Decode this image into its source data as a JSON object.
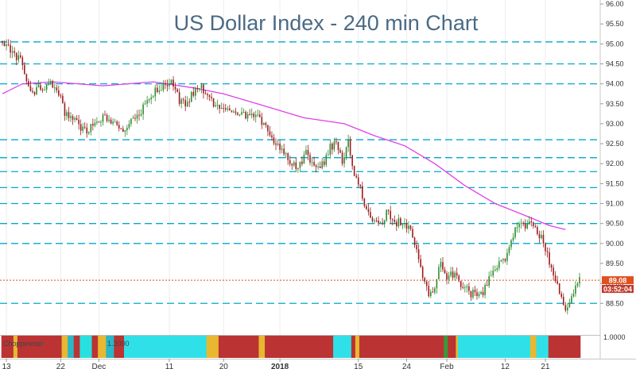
{
  "chart_data": {
    "type": "candlestick",
    "title": "US Dollar Index - 240 min Chart",
    "ylim": [
      87.75,
      96.1
    ],
    "y_ticks": [
      "96.00",
      "95.50",
      "95.00",
      "94.50",
      "94.00",
      "93.50",
      "93.00",
      "92.50",
      "92.00",
      "91.50",
      "91.00",
      "90.50",
      "90.00",
      "89.50",
      "89.00",
      "88.50"
    ],
    "x_ticks": [
      {
        "label": "13",
        "i": 2
      },
      {
        "label": "22",
        "i": 29
      },
      {
        "label": "Dec",
        "i": 48
      },
      {
        "label": "11",
        "i": 83
      },
      {
        "label": "20",
        "i": 110
      },
      {
        "label": "2018",
        "i": 138
      },
      {
        "label": "15",
        "i": 177
      },
      {
        "label": "24",
        "i": 201
      },
      {
        "label": "Feb",
        "i": 221
      },
      {
        "label": "12",
        "i": 250
      },
      {
        "label": "21",
        "i": 270
      }
    ],
    "horizontal_levels": [
      95.05,
      94.5,
      94.0,
      92.6,
      92.15,
      91.8,
      91.4,
      91.0,
      90.5,
      90.0,
      88.5
    ],
    "price_path": [
      [
        0,
        95.1
      ],
      [
        4,
        94.8
      ],
      [
        9,
        94.6
      ],
      [
        14,
        93.8
      ],
      [
        19,
        93.9
      ],
      [
        24,
        94.0
      ],
      [
        28,
        93.8
      ],
      [
        31,
        93.3
      ],
      [
        37,
        93.0
      ],
      [
        41,
        92.8
      ],
      [
        45,
        92.95
      ],
      [
        49,
        93.15
      ],
      [
        54,
        93.05
      ],
      [
        60,
        92.9
      ],
      [
        67,
        93.2
      ],
      [
        74,
        93.7
      ],
      [
        80,
        94.0
      ],
      [
        84,
        94.1
      ],
      [
        88,
        93.6
      ],
      [
        91,
        93.5
      ],
      [
        95,
        93.8
      ],
      [
        99,
        93.9
      ],
      [
        104,
        93.55
      ],
      [
        110,
        93.3
      ],
      [
        115,
        93.35
      ],
      [
        121,
        93.2
      ],
      [
        127,
        93.2
      ],
      [
        131,
        92.9
      ],
      [
        135,
        92.6
      ],
      [
        139,
        92.3
      ],
      [
        143,
        92.05
      ],
      [
        147,
        91.9
      ],
      [
        151,
        92.25
      ],
      [
        155,
        91.9
      ],
      [
        159,
        91.95
      ],
      [
        163,
        92.4
      ],
      [
        166,
        92.55
      ],
      [
        169,
        92.1
      ],
      [
        172,
        92.55
      ],
      [
        174,
        91.9
      ],
      [
        177,
        91.5
      ],
      [
        180,
        91.0
      ],
      [
        183,
        90.6
      ],
      [
        186,
        90.5
      ],
      [
        189,
        90.6
      ],
      [
        192,
        90.8
      ],
      [
        195,
        90.5
      ],
      [
        198,
        90.55
      ],
      [
        201,
        90.4
      ],
      [
        204,
        90.25
      ],
      [
        207,
        89.6
      ],
      [
        209,
        89.2
      ],
      [
        212,
        88.7
      ],
      [
        215,
        88.95
      ],
      [
        218,
        89.5
      ],
      [
        221,
        89.2
      ],
      [
        225,
        89.2
      ],
      [
        229,
        88.9
      ],
      [
        233,
        88.75
      ],
      [
        236,
        88.7
      ],
      [
        239,
        88.8
      ],
      [
        242,
        89.15
      ],
      [
        245,
        89.4
      ],
      [
        248,
        89.6
      ],
      [
        251,
        89.7
      ],
      [
        254,
        90.2
      ],
      [
        257,
        90.5
      ],
      [
        260,
        90.45
      ],
      [
        263,
        90.5
      ],
      [
        266,
        90.25
      ],
      [
        269,
        90.05
      ],
      [
        272,
        89.55
      ],
      [
        275,
        89.1
      ],
      [
        278,
        88.6
      ],
      [
        281,
        88.3
      ],
      [
        284,
        88.75
      ],
      [
        287,
        89.08
      ]
    ],
    "moving_average": {
      "color": "#e040e8",
      "points": [
        [
          0,
          93.75
        ],
        [
          10,
          94.0
        ],
        [
          25,
          94.05
        ],
        [
          50,
          93.95
        ],
        [
          75,
          94.05
        ],
        [
          95,
          93.9
        ],
        [
          110,
          93.75
        ],
        [
          130,
          93.45
        ],
        [
          150,
          93.15
        ],
        [
          170,
          93.0
        ],
        [
          185,
          92.7
        ],
        [
          200,
          92.45
        ],
        [
          215,
          92.0
        ],
        [
          230,
          91.45
        ],
        [
          245,
          91.0
        ],
        [
          260,
          90.7
        ],
        [
          272,
          90.45
        ],
        [
          280,
          90.35
        ]
      ]
    },
    "last_price": {
      "value": 89.08,
      "label": "89.08",
      "countdown": "03:52:04"
    },
    "colors": {
      "up": "#2e8b2e",
      "down": "#9b1c1c",
      "grid": "#00aacc",
      "last_price": "#e05020"
    }
  },
  "indicator": {
    "label": "Choppiness",
    "value_label": "1.2000",
    "axis_label": "1.0000",
    "segments": [
      {
        "from": 0,
        "to": 6,
        "color": "#bb3333"
      },
      {
        "from": 6,
        "to": 8,
        "color": "#e8b830"
      },
      {
        "from": 8,
        "to": 30,
        "color": "#bb3333"
      },
      {
        "from": 30,
        "to": 33,
        "color": "#e8b830"
      },
      {
        "from": 33,
        "to": 36,
        "color": "#28b8c8"
      },
      {
        "from": 36,
        "to": 39,
        "color": "#bb3333"
      },
      {
        "from": 39,
        "to": 45,
        "color": "#28e0e0"
      },
      {
        "from": 45,
        "to": 48,
        "color": "#bb3333"
      },
      {
        "from": 48,
        "to": 52,
        "color": "#e8b830"
      },
      {
        "from": 52,
        "to": 56,
        "color": "#28b8c8"
      },
      {
        "from": 56,
        "to": 61,
        "color": "#bb3333"
      },
      {
        "from": 61,
        "to": 102,
        "color": "#30e0e8"
      },
      {
        "from": 102,
        "to": 108,
        "color": "#e8b830"
      },
      {
        "from": 108,
        "to": 128,
        "color": "#bb3333"
      },
      {
        "from": 128,
        "to": 131,
        "color": "#e8b830"
      },
      {
        "from": 131,
        "to": 165,
        "color": "#bb3333"
      },
      {
        "from": 165,
        "to": 174,
        "color": "#30e0e8"
      },
      {
        "from": 174,
        "to": 176,
        "color": "#bb3333"
      },
      {
        "from": 176,
        "to": 178,
        "color": "#e8b830"
      },
      {
        "from": 178,
        "to": 220,
        "color": "#bb3333"
      },
      {
        "from": 220,
        "to": 222,
        "color": "#3a9a3a"
      },
      {
        "from": 222,
        "to": 226,
        "color": "#bb3333"
      },
      {
        "from": 226,
        "to": 227,
        "color": "#e8b830"
      },
      {
        "from": 227,
        "to": 263,
        "color": "#30e0e8"
      },
      {
        "from": 263,
        "to": 266,
        "color": "#e8b830"
      },
      {
        "from": 266,
        "to": 272,
        "color": "#30e0e8"
      },
      {
        "from": 272,
        "to": 287,
        "color": "#bb3333"
      }
    ]
  }
}
